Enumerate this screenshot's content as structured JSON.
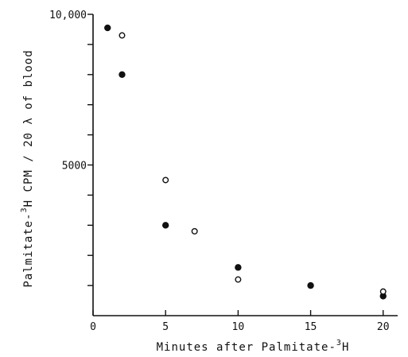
{
  "chart_data": {
    "type": "scatter",
    "title": "",
    "xlabel": "Minutes after Palmitate-",
    "xlabel_sup": "3",
    "xlabel_end": "H",
    "ylabel": "Palmitate-",
    "ylabel_sup": "3",
    "ylabel_end": "H CPM / 20 λ of blood",
    "xlim": [
      0,
      21
    ],
    "ylim": [
      0,
      10000
    ],
    "x_ticks": [
      {
        "value": 0,
        "label": "0"
      },
      {
        "value": 5,
        "label": "5"
      },
      {
        "value": 10,
        "label": "10"
      },
      {
        "value": 15,
        "label": "15"
      },
      {
        "value": 20,
        "label": "20"
      }
    ],
    "y_ticks": [
      {
        "value": 1000,
        "label": ""
      },
      {
        "value": 2000,
        "label": ""
      },
      {
        "value": 3000,
        "label": ""
      },
      {
        "value": 4000,
        "label": ""
      },
      {
        "value": 5000,
        "label": "5000"
      },
      {
        "value": 6000,
        "label": ""
      },
      {
        "value": 7000,
        "label": ""
      },
      {
        "value": 8000,
        "label": ""
      },
      {
        "value": 9000,
        "label": ""
      },
      {
        "value": 10000,
        "label": "10,000"
      }
    ],
    "grid": false,
    "series": [
      {
        "marker": "filled-circle",
        "color": "#111111",
        "points": [
          {
            "x": 1,
            "y": 9550
          },
          {
            "x": 2,
            "y": 8000
          },
          {
            "x": 5,
            "y": 3000
          },
          {
            "x": 10,
            "y": 1600
          },
          {
            "x": 15,
            "y": 1000
          },
          {
            "x": 20,
            "y": 650
          }
        ]
      },
      {
        "marker": "open-circle",
        "color": "#111111",
        "points": [
          {
            "x": 2,
            "y": 9300
          },
          {
            "x": 5,
            "y": 4500
          },
          {
            "x": 7,
            "y": 2800
          },
          {
            "x": 10,
            "y": 1200
          },
          {
            "x": 20,
            "y": 800
          }
        ]
      }
    ]
  }
}
